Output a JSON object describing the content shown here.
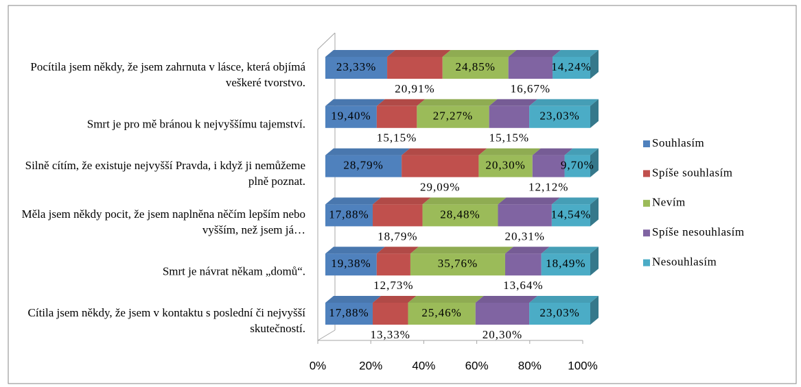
{
  "chart_data": {
    "type": "stacked_bar_horizontal",
    "categories": [
      "Pocítila jsem někdy, že jsem zahrnuta v lásce, která objímá veškeré tvorstvo.",
      "Smrt je pro mě bránou k nejvyššímu tajemství.",
      "Silně cítím, že existuje nejvyšší Pravda, i když ji nemůžeme plně poznat.",
      "Měla jsem někdy pocit, že jsem naplněna něčím lepším nebo vyšším, než jsem já…",
      "Smrt je návrat někam „domů“.",
      "Cítila jsem někdy, že jsem v kontaktu s poslední či nejvyšší skutečností."
    ],
    "series": [
      {
        "name": "Souhlasím",
        "color": "#4f81bd",
        "values": [
          23.33,
          19.4,
          28.79,
          17.88,
          19.38,
          17.88
        ],
        "value_labels": [
          "23,33%",
          "19,40%",
          "28,79%",
          "17,88%",
          "19,38%",
          "17,88%"
        ]
      },
      {
        "name": "Spíše souhlasím",
        "color": "#c0504d",
        "values": [
          20.91,
          15.15,
          29.09,
          18.79,
          12.73,
          13.33
        ],
        "value_labels": [
          "20,91%",
          "15,15%",
          "29,09%",
          "18,79%",
          "12,73%",
          "13,33%"
        ]
      },
      {
        "name": "Nevím",
        "color": "#9bbb59",
        "values": [
          24.85,
          27.27,
          20.3,
          28.48,
          35.76,
          25.46
        ],
        "value_labels": [
          "24,85%",
          "27,27%",
          "20,30%",
          "28,48%",
          "35,76%",
          "25,46%"
        ]
      },
      {
        "name": "Spíše nesouhlasím",
        "color": "#8064a2",
        "values": [
          16.67,
          15.15,
          12.12,
          20.31,
          13.64,
          20.3
        ],
        "value_labels": [
          "16,67%",
          "15,15%",
          "12,12%",
          "20,31%",
          "13,64%",
          "20,30%"
        ]
      },
      {
        "name": "Nesouhlasím",
        "color": "#4bacc6",
        "values": [
          14.24,
          23.03,
          9.7,
          14.54,
          18.49,
          23.03
        ],
        "value_labels": [
          "14,24%",
          "23,03%",
          "9,70%",
          "14,54%",
          "18,49%",
          "23,03%"
        ]
      }
    ],
    "xlim": [
      0,
      100
    ],
    "xticks": [
      {
        "value": 0,
        "label": "0%"
      },
      {
        "value": 20,
        "label": "20%"
      },
      {
        "value": 40,
        "label": "40%"
      },
      {
        "value": 60,
        "label": "60%"
      },
      {
        "value": 80,
        "label": "80%"
      },
      {
        "value": 100,
        "label": "100%"
      }
    ],
    "legend": "right"
  }
}
